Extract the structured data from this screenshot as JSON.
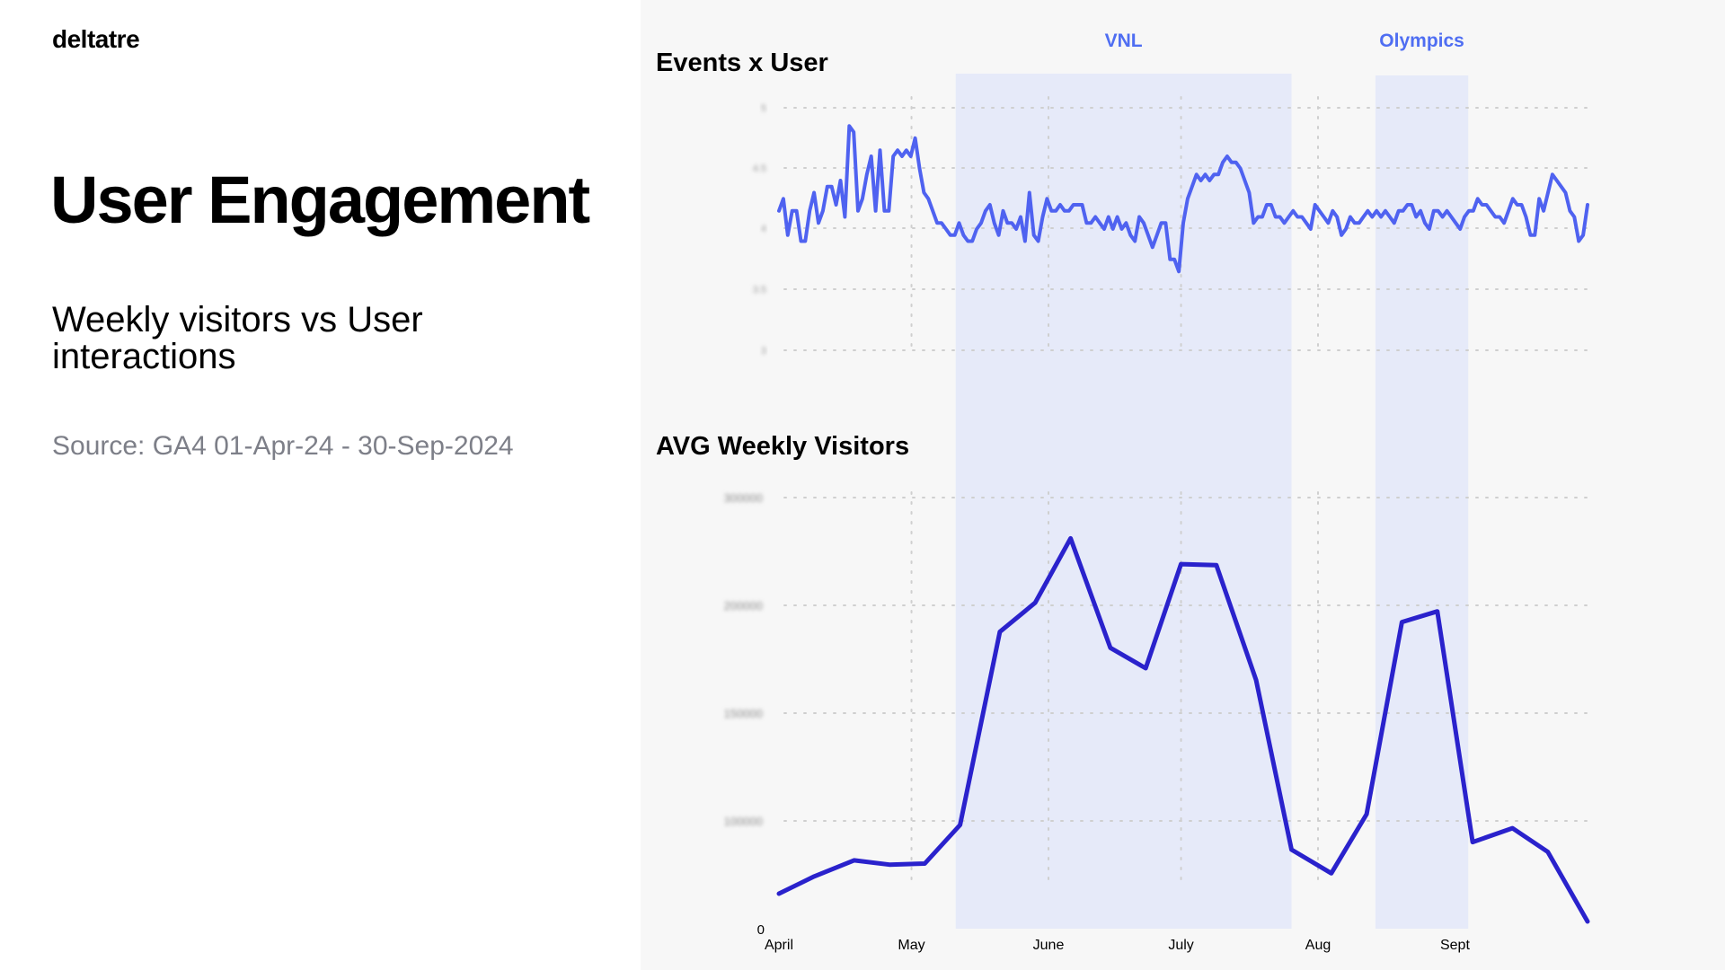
{
  "logo": "deltatre",
  "title": "User Engagement",
  "subtitle": "Weekly visitors vs User interactions",
  "source": "Source: GA4 01-Apr-24 - 30-Sep-2024",
  "colors": {
    "band": "#e6eaf9",
    "events_line": "#4f62f0",
    "visitors_line": "#2a22cc",
    "period_label": "#4f6ef2",
    "grid": "#cfcfcf"
  },
  "chart_data": [
    {
      "type": "line",
      "title": "Events x User",
      "x_label_months": [
        "April",
        "May",
        "June",
        "July",
        "Aug",
        "Sept"
      ],
      "x_range_days": [
        0,
        183
      ],
      "ylim": [
        1.0,
        5.0
      ],
      "yticks": [
        "5",
        "4.5",
        "4",
        "3.5",
        "3"
      ],
      "highlight_periods": [
        {
          "label": "VNL",
          "start_day": 40,
          "end_day": 116
        },
        {
          "label": "Olympics",
          "start_day": 135,
          "end_day": 156
        }
      ],
      "series": [
        {
          "name": "Events per user",
          "values": [
            3.3,
            3.5,
            2.9,
            3.3,
            3.3,
            2.8,
            2.8,
            3.3,
            3.6,
            3.1,
            3.3,
            3.7,
            3.7,
            3.4,
            3.8,
            3.2,
            4.7,
            4.6,
            3.3,
            3.5,
            3.9,
            4.2,
            3.3,
            4.3,
            3.3,
            3.3,
            4.2,
            4.3,
            4.2,
            4.3,
            4.2,
            4.5,
            4.0,
            3.6,
            3.5,
            3.3,
            3.1,
            3.1,
            3.0,
            2.9,
            2.9,
            3.1,
            2.9,
            2.8,
            2.8,
            3.0,
            3.1,
            3.3,
            3.4,
            3.1,
            2.9,
            3.3,
            3.1,
            3.1,
            3.0,
            3.2,
            2.8,
            3.6,
            2.9,
            2.8,
            3.2,
            3.5,
            3.3,
            3.3,
            3.4,
            3.3,
            3.3,
            3.4,
            3.4,
            3.4,
            3.1,
            3.1,
            3.2,
            3.1,
            3.0,
            3.2,
            3.0,
            3.2,
            3.0,
            3.1,
            2.9,
            2.8,
            3.2,
            3.1,
            2.9,
            2.7,
            2.9,
            3.1,
            3.1,
            2.5,
            2.5,
            2.3,
            3.1,
            3.5,
            3.7,
            3.9,
            3.8,
            3.9,
            3.8,
            3.9,
            3.9,
            4.1,
            4.2,
            4.1,
            4.1,
            4.0,
            3.8,
            3.6,
            3.1,
            3.2,
            3.2,
            3.4,
            3.4,
            3.2,
            3.2,
            3.1,
            3.2,
            3.3,
            3.2,
            3.2,
            3.1,
            3.0,
            3.4,
            3.3,
            3.2,
            3.1,
            3.3,
            3.2,
            2.9,
            3.0,
            3.2,
            3.1,
            3.1,
            3.2,
            3.3,
            3.2,
            3.3,
            3.2,
            3.3,
            3.2,
            3.1,
            3.3,
            3.3,
            3.4,
            3.4,
            3.2,
            3.3,
            3.1,
            3.0,
            3.3,
            3.3,
            3.2,
            3.3,
            3.2,
            3.1,
            3.0,
            3.2,
            3.3,
            3.3,
            3.5,
            3.4,
            3.4,
            3.3,
            3.2,
            3.2,
            3.1,
            3.3,
            3.5,
            3.4,
            3.4,
            3.2,
            2.9,
            2.9,
            3.5,
            3.3,
            3.6,
            3.9,
            3.8,
            3.7,
            3.6,
            3.3,
            3.2,
            2.8,
            2.9,
            3.4
          ]
        }
      ]
    },
    {
      "type": "line",
      "title": "AVG Weekly Visitors",
      "x_label_months": [
        "April",
        "May",
        "June",
        "July",
        "Aug",
        "Sept"
      ],
      "x_range_days": [
        0,
        183
      ],
      "ylim": [
        0,
        400000
      ],
      "yticks": [
        "300000",
        "200000",
        "150000",
        "100000",
        "50000",
        "0"
      ],
      "highlight_periods": [
        {
          "label": "VNL",
          "start_day": 40,
          "end_day": 116
        },
        {
          "label": "Olympics",
          "start_day": 135,
          "end_day": 156
        }
      ],
      "series": [
        {
          "name": "Weekly visitors",
          "x_days": [
            0,
            8,
            17,
            25,
            33,
            41,
            50,
            58,
            66,
            75,
            83,
            91,
            99,
            108,
            116,
            125,
            133,
            141,
            149,
            157,
            166,
            174,
            183
          ],
          "values": [
            31000,
            47000,
            62000,
            58000,
            59000,
            95000,
            275000,
            302000,
            362000,
            260000,
            241000,
            338000,
            337000,
            230000,
            72000,
            50000,
            105000,
            284000,
            294000,
            79000,
            92000,
            70000,
            5000
          ]
        }
      ]
    }
  ]
}
